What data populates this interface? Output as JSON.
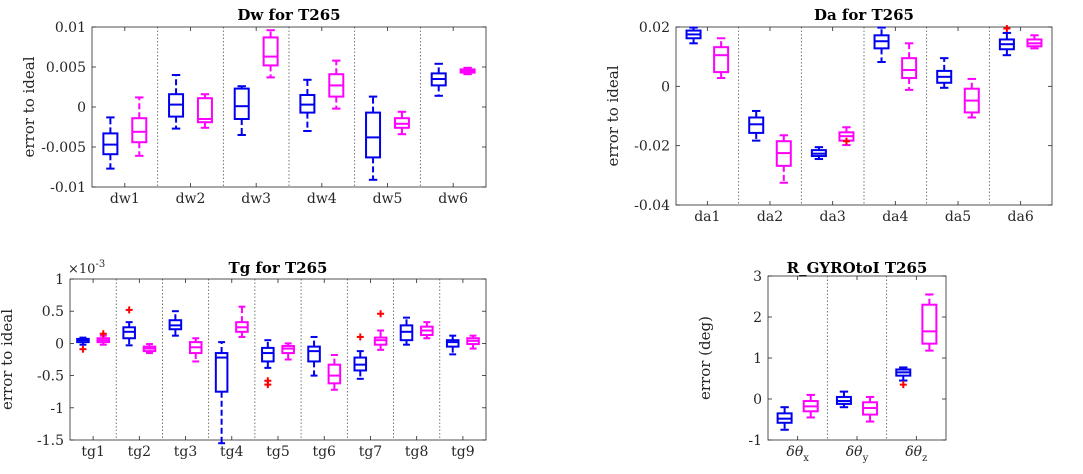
{
  "colors": {
    "series1": "#0000ee",
    "series2": "#ff00ff",
    "outlier": "#ff0000"
  },
  "chart_data": [
    {
      "id": "dw",
      "type": "box",
      "title": "Dw for T265",
      "ylabel": "error to ideal",
      "xlabel": "",
      "ylim": [
        -0.01,
        0.01
      ],
      "yticks": [
        -0.01,
        -0.005,
        0,
        0.005,
        0.01
      ],
      "yticklabels": [
        "-0.01",
        "-0.005",
        "0",
        "0.005",
        "0.01"
      ],
      "multiplier": "",
      "categories": [
        "dw1",
        "dw2",
        "dw3",
        "dw4",
        "dw5",
        "dw6"
      ],
      "series": [
        {
          "boxes": [
            {
              "min": -0.0077,
              "q1": -0.0059,
              "med": -0.0047,
              "q3": -0.0033,
              "max": -0.0013,
              "outliers": []
            },
            {
              "min": -0.0027,
              "q1": -0.0012,
              "med": 0.0003,
              "q3": 0.0016,
              "max": 0.004,
              "outliers": []
            },
            {
              "min": -0.0035,
              "q1": -0.0015,
              "med": 0.0001,
              "q3": 0.0023,
              "max": 0.0026,
              "outliers": []
            },
            {
              "min": -0.003,
              "q1": -0.0007,
              "med": 0.0003,
              "q3": 0.0015,
              "max": 0.0034,
              "outliers": []
            },
            {
              "min": -0.0091,
              "q1": -0.0063,
              "med": -0.0038,
              "q3": -0.0007,
              "max": 0.0013,
              "outliers": []
            },
            {
              "min": 0.0014,
              "q1": 0.0027,
              "med": 0.0035,
              "q3": 0.0042,
              "max": 0.0054,
              "outliers": []
            }
          ]
        },
        {
          "boxes": [
            {
              "min": -0.0061,
              "q1": -0.0044,
              "med": -0.0031,
              "q3": -0.0014,
              "max": 0.0012,
              "outliers": []
            },
            {
              "min": -0.0026,
              "q1": -0.0019,
              "med": -0.0015,
              "q3": 0.0011,
              "max": 0.0016,
              "outliers": []
            },
            {
              "min": 0.0037,
              "q1": 0.0052,
              "med": 0.0063,
              "q3": 0.0087,
              "max": 0.0096,
              "outliers": []
            },
            {
              "min": -0.0002,
              "q1": 0.0013,
              "med": 0.0027,
              "q3": 0.0041,
              "max": 0.0058,
              "outliers": []
            },
            {
              "min": -0.0034,
              "q1": -0.0026,
              "med": -0.0021,
              "q3": -0.0014,
              "max": -0.0006,
              "outliers": []
            },
            {
              "min": 0.0041,
              "q1": 0.0043,
              "med": 0.0045,
              "q3": 0.0047,
              "max": 0.0049,
              "outliers": []
            }
          ]
        }
      ]
    },
    {
      "id": "da",
      "type": "box",
      "title": "Da for T265",
      "ylabel": "error to ideal",
      "xlabel": "",
      "ylim": [
        -0.04,
        0.02
      ],
      "yticks": [
        -0.04,
        -0.02,
        0,
        0.02
      ],
      "yticklabels": [
        "-0.04",
        "-0.02",
        "0",
        "0.02"
      ],
      "multiplier": "",
      "categories": [
        "da1",
        "da2",
        "da3",
        "da4",
        "da5",
        "da6"
      ],
      "series": [
        {
          "boxes": [
            {
              "min": 0.0145,
              "q1": 0.0162,
              "med": 0.0175,
              "q3": 0.0188,
              "max": 0.0198,
              "outliers": []
            },
            {
              "min": -0.0183,
              "q1": -0.0157,
              "med": -0.0128,
              "q3": -0.0105,
              "max": -0.0083,
              "outliers": []
            },
            {
              "min": -0.0245,
              "q1": -0.0235,
              "med": -0.0227,
              "q3": -0.0215,
              "max": -0.0205,
              "outliers": []
            },
            {
              "min": 0.0082,
              "q1": 0.0128,
              "med": 0.0152,
              "q3": 0.0172,
              "max": 0.0198,
              "outliers": []
            },
            {
              "min": -0.0005,
              "q1": 0.0012,
              "med": 0.0032,
              "q3": 0.0052,
              "max": 0.0095,
              "outliers": []
            },
            {
              "min": 0.0105,
              "q1": 0.0125,
              "med": 0.0142,
              "q3": 0.0158,
              "max": 0.018,
              "outliers": [
                0.0195
              ]
            }
          ]
        },
        {
          "boxes": [
            {
              "min": 0.0028,
              "q1": 0.0048,
              "med": 0.0105,
              "q3": 0.0132,
              "max": 0.0162,
              "outliers": []
            },
            {
              "min": -0.0325,
              "q1": -0.0268,
              "med": -0.0225,
              "q3": -0.0185,
              "max": -0.0165,
              "outliers": []
            },
            {
              "min": -0.0198,
              "q1": -0.0183,
              "med": -0.0168,
              "q3": -0.0155,
              "max": -0.0138,
              "outliers": [
                -0.0185
              ]
            },
            {
              "min": -0.0012,
              "q1": 0.0028,
              "med": 0.0055,
              "q3": 0.0095,
              "max": 0.0145,
              "outliers": []
            },
            {
              "min": -0.0105,
              "q1": -0.0088,
              "med": -0.0048,
              "q3": -0.0008,
              "max": 0.0025,
              "outliers": []
            },
            {
              "min": 0.0128,
              "q1": 0.0135,
              "med": 0.0145,
              "q3": 0.0158,
              "max": 0.0172,
              "outliers": []
            }
          ]
        }
      ]
    },
    {
      "id": "tg",
      "type": "box",
      "title": "Tg for T265",
      "ylabel": "error to ideal",
      "xlabel": "",
      "ylim": [
        -1.5,
        1
      ],
      "yticks": [
        -1.5,
        -1,
        -0.5,
        0,
        0.5,
        1
      ],
      "yticklabels": [
        "-1.5",
        "-1",
        "-0.5",
        "0",
        "0.5",
        "1"
      ],
      "multiplier": "×10",
      "multiplier_exp": "-3",
      "categories": [
        "tg1",
        "tg2",
        "tg3",
        "tg4",
        "tg5",
        "tg6",
        "tg7",
        "tg8",
        "tg9"
      ],
      "series": [
        {
          "boxes": [
            {
              "min": -0.02,
              "q1": 0.02,
              "med": 0.05,
              "q3": 0.07,
              "max": 0.09,
              "outliers": [
                -0.09
              ]
            },
            {
              "min": -0.03,
              "q1": 0.08,
              "med": 0.18,
              "q3": 0.25,
              "max": 0.33,
              "outliers": [
                0.52
              ]
            },
            {
              "min": 0.12,
              "q1": 0.22,
              "med": 0.28,
              "q3": 0.36,
              "max": 0.5,
              "outliers": []
            },
            {
              "min": -1.55,
              "q1": -0.75,
              "med": -0.22,
              "q3": -0.15,
              "max": 0.02,
              "outliers": []
            },
            {
              "min": -0.38,
              "q1": -0.28,
              "med": -0.15,
              "q3": -0.07,
              "max": 0.05,
              "outliers": [
                -0.58,
                -0.64
              ]
            },
            {
              "min": -0.5,
              "q1": -0.28,
              "med": -0.12,
              "q3": -0.05,
              "max": 0.1,
              "outliers": []
            },
            {
              "min": -0.55,
              "q1": -0.42,
              "med": -0.33,
              "q3": -0.22,
              "max": -0.12,
              "outliers": [
                0.1
              ]
            },
            {
              "min": -0.02,
              "q1": 0.05,
              "med": 0.18,
              "q3": 0.28,
              "max": 0.4,
              "outliers": []
            },
            {
              "min": -0.17,
              "q1": -0.05,
              "med": 0.02,
              "q3": 0.05,
              "max": 0.12,
              "outliers": []
            }
          ]
        },
        {
          "boxes": [
            {
              "min": -0.02,
              "q1": 0.02,
              "med": 0.05,
              "q3": 0.08,
              "max": 0.12,
              "outliers": [
                0.15
              ]
            },
            {
              "min": -0.15,
              "q1": -0.12,
              "med": -0.08,
              "q3": -0.05,
              "max": -0.01,
              "outliers": []
            },
            {
              "min": -0.28,
              "q1": -0.15,
              "med": -0.06,
              "q3": 0.02,
              "max": 0.08,
              "outliers": []
            },
            {
              "min": 0.1,
              "q1": 0.18,
              "med": 0.25,
              "q3": 0.33,
              "max": 0.57,
              "outliers": []
            },
            {
              "min": -0.25,
              "q1": -0.15,
              "med": -0.08,
              "q3": -0.04,
              "max": 0.0,
              "outliers": []
            },
            {
              "min": -0.72,
              "q1": -0.62,
              "med": -0.5,
              "q3": -0.33,
              "max": -0.18,
              "outliers": []
            },
            {
              "min": -0.1,
              "q1": -0.02,
              "med": 0.05,
              "q3": 0.09,
              "max": 0.2,
              "outliers": [
                0.46
              ]
            },
            {
              "min": 0.08,
              "q1": 0.13,
              "med": 0.2,
              "q3": 0.26,
              "max": 0.33,
              "outliers": []
            },
            {
              "min": -0.08,
              "q1": -0.01,
              "med": 0.04,
              "q3": 0.08,
              "max": 0.12,
              "outliers": []
            }
          ]
        }
      ]
    },
    {
      "id": "r",
      "type": "box",
      "title": "R_GYROtoI T265",
      "ylabel": "error (deg)",
      "xlabel": "",
      "ylim": [
        -1,
        3
      ],
      "yticks": [
        -1,
        0,
        1,
        2,
        3
      ],
      "yticklabels": [
        "-1",
        "0",
        "1",
        "2",
        "3"
      ],
      "multiplier": "",
      "categories": [
        "δθ",
        "δθ",
        "δθ"
      ],
      "category_subscripts": [
        "x",
        "y",
        "z"
      ],
      "series": [
        {
          "boxes": [
            {
              "min": -0.75,
              "q1": -0.58,
              "med": -0.48,
              "q3": -0.35,
              "max": -0.2,
              "outliers": []
            },
            {
              "min": -0.2,
              "q1": -0.12,
              "med": -0.05,
              "q3": 0.05,
              "max": 0.18,
              "outliers": []
            },
            {
              "min": 0.45,
              "q1": 0.57,
              "med": 0.65,
              "q3": 0.72,
              "max": 0.77,
              "outliers": [
                0.35
              ]
            }
          ]
        },
        {
          "boxes": [
            {
              "min": -0.45,
              "q1": -0.3,
              "med": -0.18,
              "q3": -0.05,
              "max": 0.1,
              "outliers": []
            },
            {
              "min": -0.55,
              "q1": -0.38,
              "med": -0.22,
              "q3": -0.08,
              "max": 0.05,
              "outliers": []
            },
            {
              "min": 1.18,
              "q1": 1.35,
              "med": 1.65,
              "q3": 2.3,
              "max": 2.55,
              "outliers": []
            }
          ]
        }
      ]
    }
  ]
}
